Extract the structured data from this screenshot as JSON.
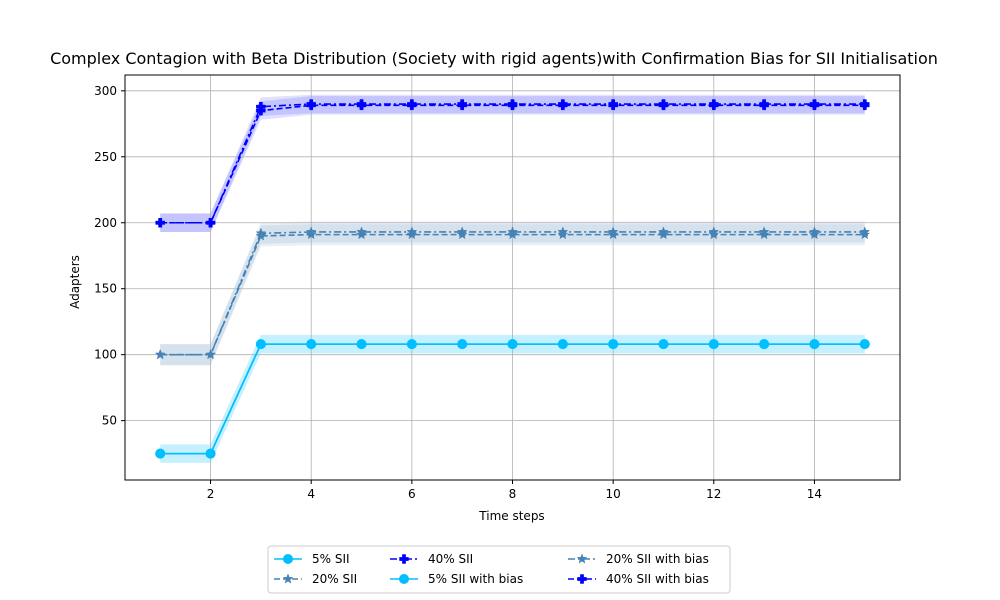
{
  "chart_data": {
    "type": "line",
    "title": "Complex Contagion with Beta Distribution (Society with rigid agents)with Confirmation  Bias for SII Initialisation",
    "xlabel": "Time steps",
    "ylabel": "Adapters",
    "xlim": [
      0.3,
      15.7
    ],
    "ylim": [
      5,
      312
    ],
    "xticks": [
      2,
      4,
      6,
      8,
      10,
      12,
      14
    ],
    "yticks": [
      50,
      100,
      150,
      200,
      250,
      300
    ],
    "grid": true,
    "legend_position": "bottom-center",
    "x": [
      1,
      2,
      3,
      4,
      5,
      6,
      7,
      8,
      9,
      10,
      11,
      12,
      13,
      14,
      15
    ],
    "series": [
      {
        "name": "5% SII",
        "color": "#00bfff",
        "linestyle": "solid",
        "marker": "circle",
        "values": [
          25,
          25,
          108,
          108,
          108,
          108,
          108,
          108,
          108,
          108,
          108,
          108,
          108,
          108,
          108
        ],
        "band": 7,
        "band_color": "#00bfff"
      },
      {
        "name": "20% SII",
        "color": "#4682b4",
        "linestyle": "dashed",
        "marker": "star",
        "values": [
          100,
          100,
          190,
          191,
          191,
          191,
          191,
          191,
          191,
          191,
          191,
          191,
          191,
          191,
          191
        ],
        "band": 8,
        "band_color": "#4682b4"
      },
      {
        "name": "40% SII",
        "color": "#0000ff",
        "linestyle": "dashdot",
        "marker": "plus",
        "values": [
          200,
          200,
          288,
          290,
          290,
          290,
          290,
          290,
          290,
          290,
          290,
          290,
          290,
          290,
          290
        ],
        "band": 7,
        "band_color": "#0000ff"
      },
      {
        "name": "5% SII with bias",
        "color": "#00bfff",
        "linestyle": "solid",
        "marker": "circle",
        "values": [
          25,
          25,
          108,
          108,
          108,
          108,
          108,
          108,
          108,
          108,
          108,
          108,
          108,
          108,
          108
        ],
        "band": 7,
        "band_color": "#00bfff"
      },
      {
        "name": "20% SII with bias",
        "color": "#4682b4",
        "linestyle": "dashdot",
        "marker": "star",
        "values": [
          100,
          100,
          192,
          193,
          193,
          193,
          193,
          193,
          193,
          193,
          193,
          193,
          193,
          193,
          193
        ],
        "band": 8,
        "band_color": "#4682b4"
      },
      {
        "name": "40% SII with bias",
        "color": "#0000ff",
        "linestyle": "dashed",
        "marker": "plus",
        "values": [
          200,
          200,
          285,
          289,
          289,
          289,
          289,
          289,
          289,
          289,
          289,
          289,
          289,
          289,
          289
        ],
        "band": 7,
        "band_color": "#0000ff"
      }
    ]
  }
}
